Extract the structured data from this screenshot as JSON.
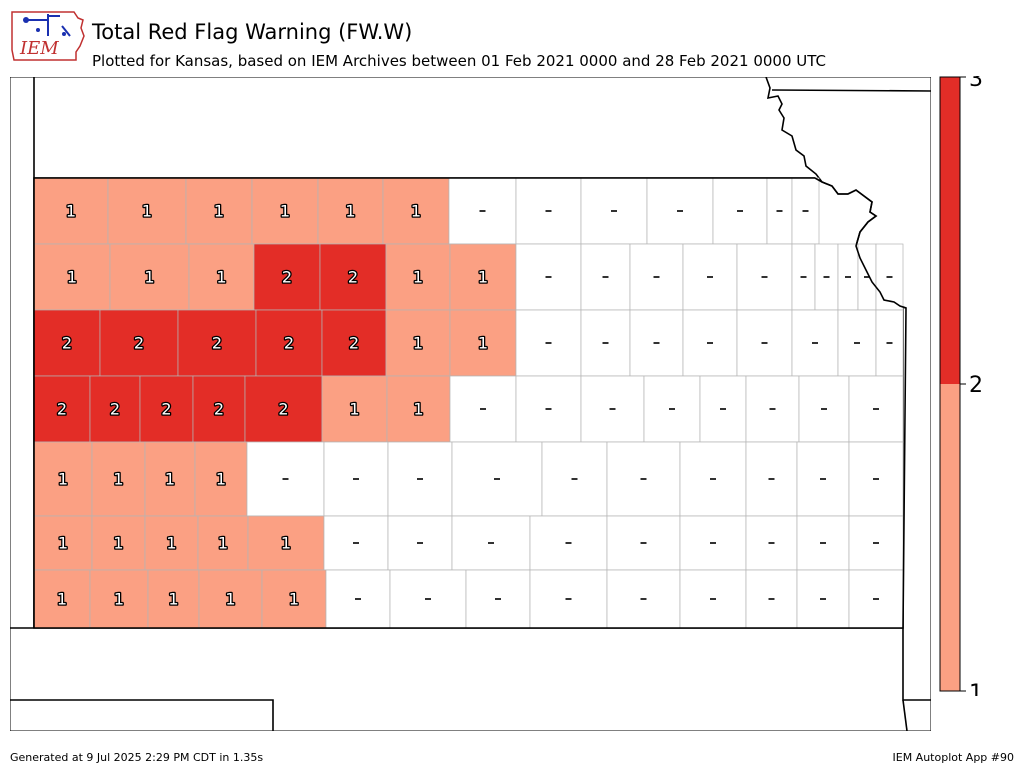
{
  "header": {
    "title": "Total Red Flag Warning (FW.W)",
    "subtitle": "Plotted for Kansas, based on IEM Archives  between 01 Feb 2021 0000 and 28 Feb 2021 0000 UTC"
  },
  "logo": {
    "text": "IEM",
    "icon": "iem-logo-icon"
  },
  "footer": {
    "generated": "Generated at 9 Jul 2025 2:29 PM CDT in 1.35s",
    "app": "IEM Autoplot App #90"
  },
  "colorbar": {
    "ticks": [
      "1",
      "2",
      "3"
    ],
    "tick_values": [
      1,
      2,
      3
    ],
    "bins": [
      {
        "from": 1,
        "to": 2,
        "color": "#fba083"
      },
      {
        "from": 2,
        "to": 3,
        "color": "#e32d27"
      }
    ]
  },
  "legend": {
    "no_data_color": "#ffffff",
    "no_data_mark": "-",
    "county_border_color": "#b4b4b4"
  },
  "colors": {
    "level1": "#fba083",
    "level2": "#e32d27",
    "zero": "#ffffff"
  },
  "map": {
    "state": "Kansas",
    "county_counts_by_row": [
      [
        1,
        1,
        1,
        1,
        1,
        1,
        "-",
        "-",
        "-",
        "-",
        "-",
        "-",
        "-"
      ],
      [
        1,
        1,
        1,
        2,
        2,
        1,
        1,
        "-",
        "-",
        "-",
        "-",
        "-",
        "-",
        "-",
        "-",
        "-",
        "-"
      ],
      [
        2,
        2,
        2,
        2,
        2,
        1,
        1,
        "-",
        "-",
        "-",
        "-",
        "-",
        "-",
        "-",
        "-",
        "-"
      ],
      [
        2,
        2,
        2,
        2,
        2,
        1,
        1,
        "-",
        "-",
        "-",
        "-",
        "-",
        "-",
        "-",
        "-",
        "-"
      ],
      [
        1,
        1,
        1,
        1,
        "-",
        "-",
        "-",
        "-",
        "-",
        "-",
        "-",
        "-",
        "-",
        "-",
        "-"
      ],
      [
        1,
        1,
        1,
        1,
        1,
        "-",
        "-",
        "-",
        "-",
        "-",
        "-",
        "-",
        "-",
        "-",
        "-"
      ],
      [
        1,
        1,
        1,
        1,
        1,
        "-",
        "-",
        "-",
        "-",
        "-",
        "-",
        "-",
        "-",
        "-",
        "-"
      ]
    ]
  }
}
